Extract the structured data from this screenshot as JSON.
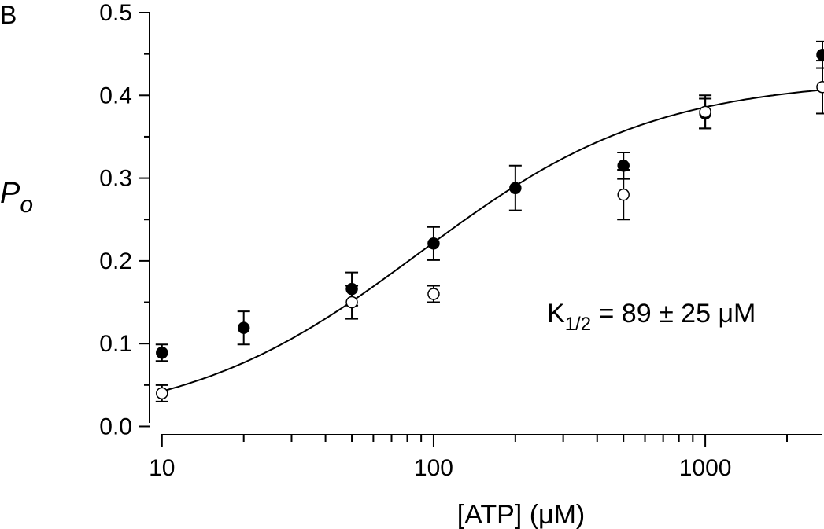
{
  "panel_label": "B",
  "annotation": {
    "prefix": "K",
    "subscript": "1/2",
    "suffix": " = 89 ± 25 μM"
  },
  "chart_data": {
    "type": "scatter",
    "title": "",
    "xlabel": "[ATP] (μM)",
    "ylabel": {
      "main": "P",
      "subscript": "o"
    },
    "xscale": "log",
    "xlim": [
      9,
      2700
    ],
    "ylim": [
      -0.01,
      0.5
    ],
    "x_tick_labels": [
      "10",
      "100",
      "1000"
    ],
    "x_tick_values": [
      10,
      100,
      1000
    ],
    "y_tick_labels": [
      "0.0",
      "0.1",
      "0.2",
      "0.3",
      "0.4",
      "0.5"
    ],
    "y_tick_values": [
      0.0,
      0.1,
      0.2,
      0.3,
      0.4,
      0.5
    ],
    "grid": false,
    "series": [
      {
        "marker": "filled-circle",
        "points": [
          {
            "x": 10,
            "y": 0.089,
            "err": 0.01
          },
          {
            "x": 20,
            "y": 0.119,
            "err": 0.02
          },
          {
            "x": 50,
            "y": 0.166,
            "err": 0.02
          },
          {
            "x": 100,
            "y": 0.221,
            "err": 0.02
          },
          {
            "x": 200,
            "y": 0.288,
            "err": 0.027
          },
          {
            "x": 500,
            "y": 0.315,
            "err": 0.016
          },
          {
            "x": 1000,
            "y": 0.378,
            "err": 0.018
          },
          {
            "x": 2700,
            "y": 0.449,
            "err": 0.016
          }
        ]
      },
      {
        "marker": "open-circle",
        "points": [
          {
            "x": 10,
            "y": 0.04,
            "err": 0.01
          },
          {
            "x": 50,
            "y": 0.15,
            "err": 0.02
          },
          {
            "x": 100,
            "y": 0.16,
            "err": 0.01
          },
          {
            "x": 500,
            "y": 0.28,
            "err": 0.03
          },
          {
            "x": 1000,
            "y": 0.38,
            "err": 0.02
          },
          {
            "x": 2700,
            "y": 0.41,
            "err": 0.032
          }
        ]
      }
    ],
    "fit_curve": {
      "model": "hill",
      "baseline": 0.0,
      "max": 0.42,
      "k_half": 89,
      "n": 1.0
    }
  }
}
